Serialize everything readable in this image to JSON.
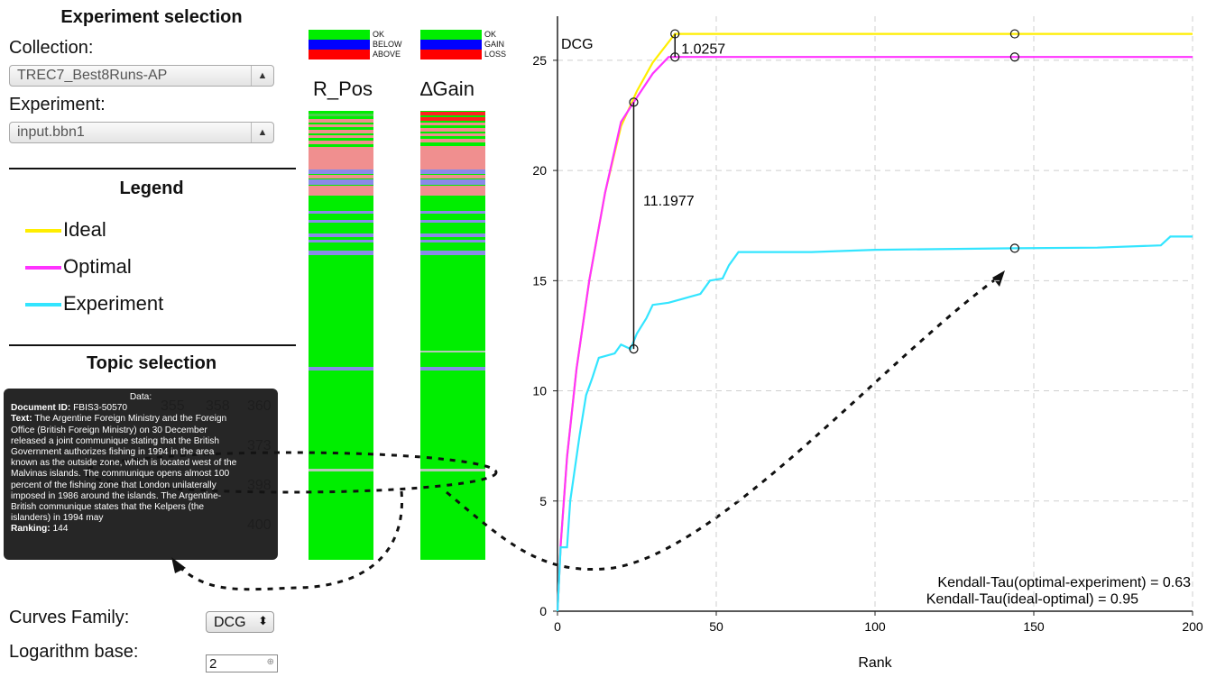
{
  "left_panel": {
    "experiment_selection_title": "Experiment selection",
    "collection_label": "Collection:",
    "collection_value": "TREC7_Best8Runs-AP",
    "experiment_label": "Experiment:",
    "experiment_value": "input.bbn1",
    "legend_title": "Legend",
    "legend_items": [
      {
        "label": "Ideal",
        "color": "#ffee00"
      },
      {
        "label": "Optimal",
        "color": "#ff33ff"
      },
      {
        "label": "Experiment",
        "color": "#33e5ff"
      }
    ],
    "topic_selection_title": "Topic selection",
    "topic_numbers_behind": [
      "355",
      "358",
      "360",
      "373",
      "398",
      "400"
    ],
    "curves_family_label": "Curves Family:",
    "curves_family_value": "DCG",
    "log_base_label": "Logarithm base:",
    "log_base_value": "2"
  },
  "tooltip": {
    "header": "Data:",
    "doc_id_label": "Document ID:",
    "doc_id": "FBIS3-50570",
    "text_label": "Text:",
    "text_lines": [
      "The Argentine Foreign Ministry and the Foreign",
      "Office (British Foreign Ministry) on 30 December",
      "released a joint communique stating that the British",
      "Government authorizes fishing in 1994 in the area",
      "known as the outside zone, which is located west of the",
      "Malvinas islands. The communique opens almost 100",
      "percent of the fishing zone that London unilaterally",
      "imposed in 1986 around the islands. The Argentine-",
      "British communique states that the Kelpers (the",
      "islanders) in 1994 may"
    ],
    "ranking_label": "Ranking:",
    "ranking": "144"
  },
  "bars": {
    "rpos": {
      "title": "R_Pos",
      "legend": [
        {
          "label": "OK",
          "color": "#00ee00"
        },
        {
          "label": "BELOW",
          "color": "#0000ff"
        },
        {
          "label": "ABOVE",
          "color": "#ff0000"
        }
      ]
    },
    "gain": {
      "title": "∆Gain",
      "legend": [
        {
          "label": "OK",
          "color": "#00ee00"
        },
        {
          "label": "GAIN",
          "color": "#0000ff"
        },
        {
          "label": "LOSS",
          "color": "#ff0000"
        }
      ]
    }
  },
  "chart_data": {
    "type": "line",
    "ylabel": "DCG",
    "xlabel": "Rank",
    "xlim": [
      0,
      200
    ],
    "ylim": [
      0,
      27
    ],
    "x_ticks": [
      0,
      50,
      100,
      150,
      200
    ],
    "y_ticks": [
      0,
      5,
      10,
      15,
      20,
      25
    ],
    "grid": true,
    "series": [
      {
        "color": "#ffee00",
        "points": [
          [
            0,
            0
          ],
          [
            1,
            3
          ],
          [
            3,
            7
          ],
          [
            6,
            11
          ],
          [
            10,
            15
          ],
          [
            15,
            19
          ],
          [
            20,
            22
          ],
          [
            25,
            23.6
          ],
          [
            30,
            24.9
          ],
          [
            37,
            26.2
          ],
          [
            200,
            26.2
          ]
        ]
      },
      {
        "color": "#ff33ff",
        "points": [
          [
            0,
            0
          ],
          [
            1,
            3
          ],
          [
            3,
            7
          ],
          [
            6,
            11
          ],
          [
            10,
            15
          ],
          [
            15,
            19
          ],
          [
            20,
            22.2
          ],
          [
            24,
            23.1
          ],
          [
            30,
            24.4
          ],
          [
            35,
            25.15
          ],
          [
            200,
            25.15
          ]
        ]
      },
      {
        "color": "#33e5ff",
        "points": [
          [
            0,
            0
          ],
          [
            1,
            2.9
          ],
          [
            3,
            2.9
          ],
          [
            4,
            5
          ],
          [
            6,
            7
          ],
          [
            7,
            8
          ],
          [
            9,
            9.8
          ],
          [
            11,
            10.6
          ],
          [
            13,
            11.5
          ],
          [
            18,
            11.7
          ],
          [
            20,
            12.1
          ],
          [
            23,
            11.9
          ],
          [
            25,
            12.6
          ],
          [
            28,
            13.3
          ],
          [
            30,
            13.9
          ],
          [
            35,
            14
          ],
          [
            40,
            14.2
          ],
          [
            45,
            14.4
          ],
          [
            48,
            15
          ],
          [
            52,
            15.1
          ],
          [
            54,
            15.7
          ],
          [
            57,
            16.3
          ],
          [
            80,
            16.3
          ],
          [
            100,
            16.4
          ],
          [
            144,
            16.47
          ],
          [
            170,
            16.5
          ],
          [
            190,
            16.6
          ],
          [
            193,
            17
          ],
          [
            200,
            17
          ]
        ]
      }
    ],
    "markers": [
      {
        "x": 37,
        "y": 26.2
      },
      {
        "x": 37,
        "y": 25.15
      },
      {
        "x": 144,
        "y": 26.2
      },
      {
        "x": 144,
        "y": 25.15
      },
      {
        "x": 24,
        "y": 23.1
      },
      {
        "x": 24,
        "y": 11.9
      },
      {
        "x": 144,
        "y": 16.47
      }
    ],
    "annotations": [
      {
        "text": "1.0257"
      },
      {
        "text": "11.1977"
      },
      {
        "text": "Kendall-Tau(optimal-experiment) = 0.63"
      },
      {
        "text": "Kendall-Tau(ideal-optimal) = 0.95"
      }
    ]
  }
}
